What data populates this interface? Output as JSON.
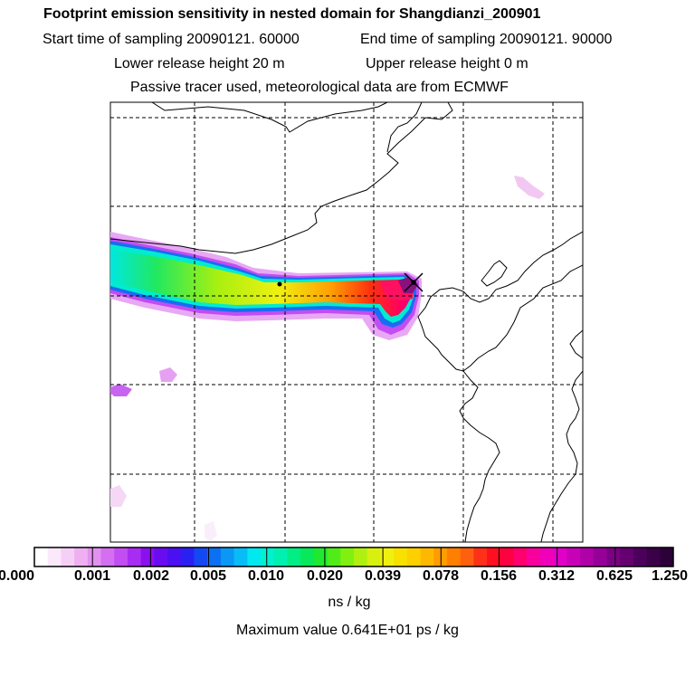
{
  "title": "Footprint emission sensitivity in nested domain for Shangdianzi_200901",
  "sampling": {
    "start": "Start time of sampling 20090121. 60000",
    "end": "End time of sampling 20090121. 90000"
  },
  "release": {
    "lower": "Lower release height   20 m",
    "upper": "Upper release height    0 m"
  },
  "tracer_note": "Passive tracer used, meteorological data are from ECMWF",
  "colorbar": {
    "ticks": [
      "0.000",
      "0.001",
      "0.002",
      "0.005",
      "0.010",
      "0.020",
      "0.039",
      "0.078",
      "0.156",
      "0.312",
      "0.625",
      "1.250"
    ],
    "colors": [
      "#ffffff",
      "#fbe8fb",
      "#f6cff6",
      "#efb0f2",
      "#e391f0",
      "#d36ff0",
      "#c24df2",
      "#a92cf2",
      "#8a10ee",
      "#6a0cf0",
      "#4a10f2",
      "#2a20f4",
      "#1448f2",
      "#0c70f2",
      "#0a98f4",
      "#08bcf6",
      "#00e8f0",
      "#00f0d0",
      "#00f0b0",
      "#00ee84",
      "#08e85a",
      "#20e830",
      "#50ec18",
      "#80f010",
      "#b0f010",
      "#d8f010",
      "#f0f010",
      "#f8e000",
      "#ffd000",
      "#ffb800",
      "#ff9c00",
      "#ff8000",
      "#ff6010",
      "#ff3018",
      "#ff1020",
      "#ff0040",
      "#ff0070",
      "#f8009c",
      "#f000b8",
      "#e000c8",
      "#c800b8",
      "#b000a8",
      "#960098",
      "#7c0084",
      "#640070",
      "#4c005c",
      "#3a0048",
      "#2c0038"
    ],
    "unit": "ns / kg"
  },
  "max_value": "Maximum value  0.641E+01 ps / kg",
  "colors": {
    "frame": "#000000",
    "grid": "#000000",
    "coast": "#000000",
    "receptor": "#000000"
  }
}
